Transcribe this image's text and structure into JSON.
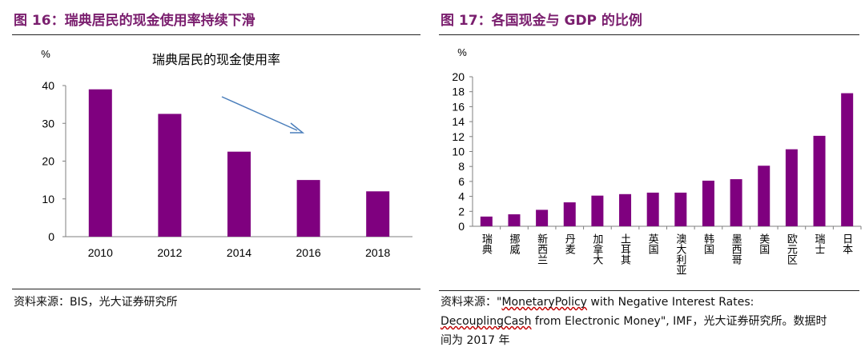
{
  "left_panel": {
    "title": "图 16：瑞典居民的现金使用率持续下滑",
    "source": "资料来源：BIS，光大证券研究所"
  },
  "right_panel": {
    "title": "图 17：各国现金与 GDP 的比例",
    "source": {
      "prefix": "资料来源：\"",
      "part1": "MonetaryPolicy",
      "part2": " with Negative Interest Rates: ",
      "part3": "DecouplingCash",
      "part4": " from Electronic Money\", IMF，光大证券研究所。数据时间为 2017 年"
    }
  },
  "chart_data": [
    {
      "type": "bar",
      "title": "",
      "ylabel": "%",
      "xlabel": "",
      "categories": [
        "2010",
        "2012",
        "2014",
        "2016",
        "2018"
      ],
      "values": [
        39,
        32.5,
        22.5,
        15,
        12
      ],
      "ylim": [
        0,
        40
      ],
      "yticks": [
        0,
        10,
        20,
        30,
        40
      ],
      "annotation": "瑞典居民的现金使用率",
      "annotation_arrow": "downward trend arrow",
      "grid": false,
      "legend": "none",
      "bar_color": "#7f007f",
      "arrow_color": "#4a7ebb"
    },
    {
      "type": "bar",
      "title": "",
      "ylabel": "%",
      "xlabel": "",
      "categories": [
        "瑞典",
        "挪威",
        "新西兰",
        "丹麦",
        "加拿大",
        "土耳其",
        "英国",
        "澳大利亚",
        "韩国",
        "墨西哥",
        "美国",
        "欧元区",
        "瑞士",
        "日本"
      ],
      "values": [
        1.3,
        1.6,
        2.2,
        3.2,
        4.1,
        4.3,
        4.5,
        4.5,
        6.1,
        6.3,
        8.1,
        10.3,
        12.1,
        17.8
      ],
      "ylim": [
        0,
        20
      ],
      "yticks": [
        0,
        2,
        4,
        6,
        8,
        10,
        12,
        14,
        16,
        18,
        20
      ],
      "grid": false,
      "legend": "none",
      "bar_color": "#7f007f"
    }
  ]
}
